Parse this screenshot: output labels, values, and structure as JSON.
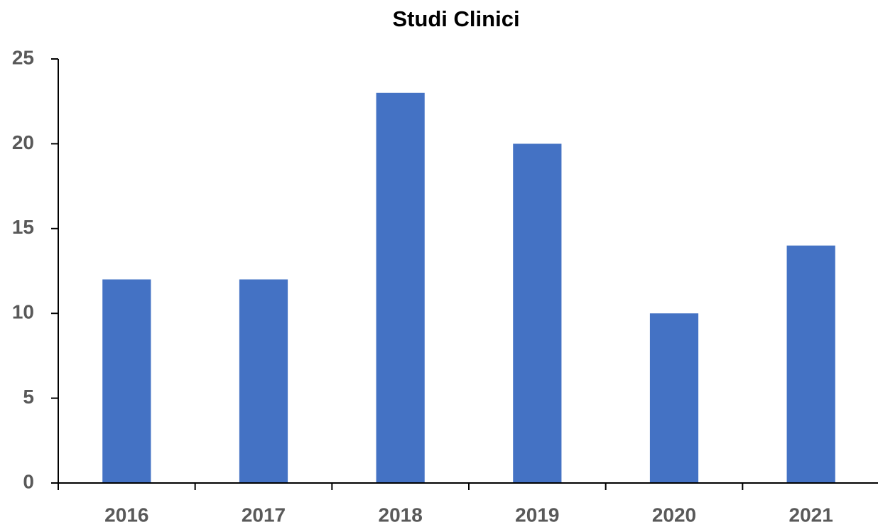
{
  "chart_data": {
    "type": "bar",
    "title": "Studi Clinici",
    "categories": [
      "2016",
      "2017",
      "2018",
      "2019",
      "2020",
      "2021"
    ],
    "values": [
      12,
      12,
      23,
      20,
      10,
      14
    ],
    "color": "#4472c4",
    "ylim": [
      0,
      25
    ],
    "yticks": [
      0,
      5,
      10,
      15,
      20,
      25
    ],
    "grid": false
  }
}
